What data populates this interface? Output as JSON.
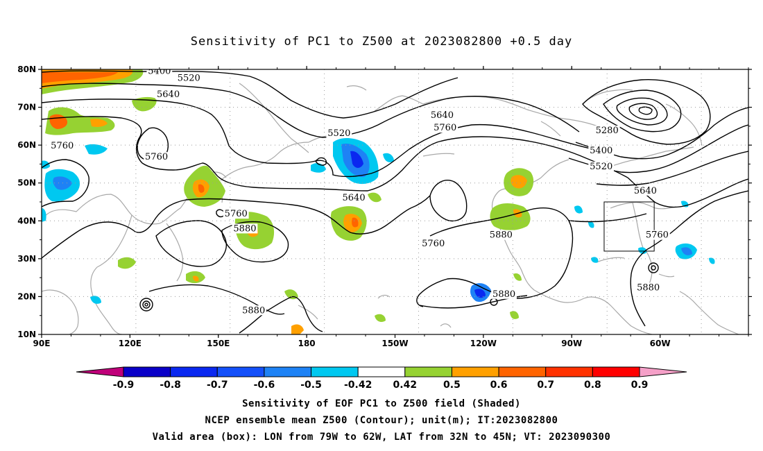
{
  "title": "Sensitivity of PC1 to Z500 at 2023082800 +0.5 day",
  "map": {
    "lat_ticks": [
      "80N",
      "70N",
      "60N",
      "50N",
      "40N",
      "30N",
      "20N",
      "10N"
    ],
    "lon_ticks": [
      "90E",
      "120E",
      "150E",
      "180",
      "150W",
      "120W",
      "90W",
      "60W"
    ],
    "lon_range": [
      "90E",
      "30W"
    ],
    "lat_range": [
      "10N",
      "80N"
    ],
    "contour_labels": [
      {
        "text": "5400",
        "lon": 130,
        "lat": 79.2
      },
      {
        "text": "5520",
        "lon": 140,
        "lat": 77.3
      },
      {
        "text": "5640",
        "lon": 133,
        "lat": 73.0
      },
      {
        "text": "5760",
        "lon": 97,
        "lat": 59.5
      },
      {
        "text": "5760",
        "lon": 129,
        "lat": 56.5
      },
      {
        "text": "5760",
        "lon": 156,
        "lat": 41.5
      },
      {
        "text": "5880",
        "lon": 159,
        "lat": 37.6
      },
      {
        "text": "5880",
        "lon": 162,
        "lat": 16.0
      },
      {
        "text": "5520",
        "lon": 191,
        "lat": 62.8
      },
      {
        "text": "5640",
        "lon": 196,
        "lat": 45.7
      },
      {
        "text": "5640",
        "lon": 226,
        "lat": 67.5
      },
      {
        "text": "5760",
        "lon": 227,
        "lat": 64.2
      },
      {
        "text": "5760",
        "lon": 223,
        "lat": 33.6
      },
      {
        "text": "5880",
        "lon": 246,
        "lat": 35.9
      },
      {
        "text": "5880",
        "lon": 247,
        "lat": 20.3
      },
      {
        "text": "5280",
        "lon": 282,
        "lat": 63.5
      },
      {
        "text": "5400",
        "lon": 280,
        "lat": 58.2
      },
      {
        "text": "5520",
        "lon": 280,
        "lat": 54.0
      },
      {
        "text": "5640",
        "lon": 295,
        "lat": 47.6
      },
      {
        "text": "5760",
        "lon": 299,
        "lat": 35.9
      },
      {
        "text": "5880",
        "lon": 296,
        "lat": 22.0
      }
    ],
    "valid_box": {
      "lon_min": -79,
      "lon_max": -62,
      "lat_min": 32,
      "lat_max": 45
    }
  },
  "colorbar": {
    "labels": [
      "-0.9",
      "-0.8",
      "-0.7",
      "-0.6",
      "-0.5",
      "-0.42",
      "0.42",
      "0.5",
      "0.6",
      "0.7",
      "0.8",
      "0.9"
    ],
    "colors": [
      "#c0007a",
      "#0a00c8",
      "#0a28f0",
      "#1450fa",
      "#1e82f5",
      "#00c8f0",
      "#ffffff",
      "#96d232",
      "#ffa000",
      "#ff6400",
      "#ff3200",
      "#ff0000",
      "#f5a0c8"
    ]
  },
  "captions": [
    "Sensitivity of EOF PC1 to Z500 field (Shaded)",
    "NCEP ensemble mean Z500 (Contour); unit(m); IT:2023082800",
    "Valid area (box): LON from 79W to 62W, LAT from 32N to 45N; VT: 2023090300"
  ]
}
